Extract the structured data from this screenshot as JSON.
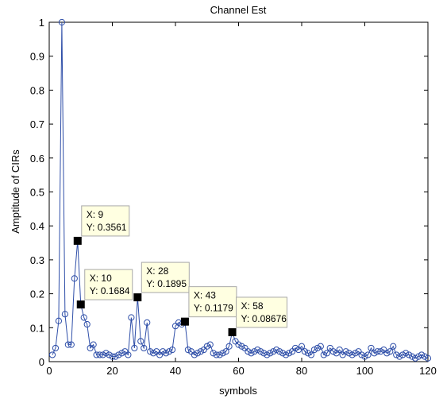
{
  "chart_data": {
    "type": "line",
    "title": "Channel Est",
    "xlabel": "symbols",
    "ylabel": "Amptitude of CIRs",
    "xlim": [
      0,
      120
    ],
    "ylim": [
      0,
      1
    ],
    "xticks": [
      "0",
      "20",
      "40",
      "60",
      "80",
      "100",
      "120"
    ],
    "yticks": [
      "0",
      "0.1",
      "0.2",
      "0.3",
      "0.4",
      "0.5",
      "0.6",
      "0.7",
      "0.8",
      "0.9",
      "1"
    ],
    "grid": false,
    "series": [
      {
        "color": "#2e4ea8",
        "x": [
          1,
          2,
          3,
          4,
          5,
          6,
          7,
          8,
          9,
          10,
          11,
          12,
          13,
          14,
          15,
          16,
          17,
          18,
          19,
          20,
          21,
          22,
          23,
          24,
          25,
          26,
          27,
          28,
          29,
          30,
          31,
          32,
          33,
          34,
          35,
          36,
          37,
          38,
          39,
          40,
          41,
          42,
          43,
          44,
          45,
          46,
          47,
          48,
          49,
          50,
          51,
          52,
          53,
          54,
          55,
          56,
          57,
          58,
          59,
          60,
          61,
          62,
          63,
          64,
          65,
          66,
          67,
          68,
          69,
          70,
          71,
          72,
          73,
          74,
          75,
          76,
          77,
          78,
          79,
          80,
          81,
          82,
          83,
          84,
          85,
          86,
          87,
          88,
          89,
          90,
          91,
          92,
          93,
          94,
          95,
          96,
          97,
          98,
          99,
          100,
          101,
          102,
          103,
          104,
          105,
          106,
          107,
          108,
          109,
          110,
          111,
          112,
          113,
          114,
          115,
          116,
          117,
          118,
          119,
          120
        ],
        "y": [
          0.02,
          0.04,
          0.12,
          1.0,
          0.14,
          0.05,
          0.05,
          0.245,
          0.3561,
          0.1684,
          0.13,
          0.11,
          0.04,
          0.05,
          0.02,
          0.02,
          0.02,
          0.025,
          0.02,
          0.015,
          0.015,
          0.02,
          0.025,
          0.03,
          0.02,
          0.13,
          0.04,
          0.1895,
          0.06,
          0.04,
          0.115,
          0.03,
          0.025,
          0.03,
          0.02,
          0.03,
          0.025,
          0.03,
          0.035,
          0.105,
          0.115,
          0.11,
          0.1179,
          0.035,
          0.03,
          0.02,
          0.025,
          0.03,
          0.035,
          0.045,
          0.05,
          0.025,
          0.02,
          0.02,
          0.025,
          0.03,
          0.045,
          0.08676,
          0.06,
          0.05,
          0.045,
          0.04,
          0.03,
          0.025,
          0.03,
          0.035,
          0.03,
          0.025,
          0.02,
          0.025,
          0.03,
          0.035,
          0.03,
          0.025,
          0.02,
          0.025,
          0.03,
          0.04,
          0.035,
          0.045,
          0.03,
          0.025,
          0.02,
          0.035,
          0.04,
          0.045,
          0.02,
          0.025,
          0.04,
          0.03,
          0.025,
          0.035,
          0.02,
          0.03,
          0.025,
          0.02,
          0.025,
          0.03,
          0.02,
          0.015,
          0.02,
          0.04,
          0.025,
          0.03,
          0.03,
          0.035,
          0.025,
          0.03,
          0.045,
          0.02,
          0.015,
          0.02,
          0.025,
          0.02,
          0.015,
          0.01,
          0.015,
          0.02,
          0.015,
          0.01
        ]
      }
    ],
    "datatips": [
      {
        "x": 9,
        "y": 0.3561,
        "x_text": "X: 9",
        "y_text": "Y: 0.3561"
      },
      {
        "x": 10,
        "y": 0.1684,
        "x_text": "X: 10",
        "y_text": "Y: 0.1684"
      },
      {
        "x": 28,
        "y": 0.1895,
        "x_text": "X: 28",
        "y_text": "Y: 0.1895"
      },
      {
        "x": 43,
        "y": 0.1179,
        "x_text": "X: 43",
        "y_text": "Y: 0.1179"
      },
      {
        "x": 58,
        "y": 0.08676,
        "x_text": "X: 58",
        "y_text": "Y: 0.08676"
      }
    ],
    "colors": {
      "line": "#2e4ea8",
      "tip_background": "#ffffe1",
      "tip_border": "#a8a8a8",
      "tip_marker": "#000000"
    }
  }
}
